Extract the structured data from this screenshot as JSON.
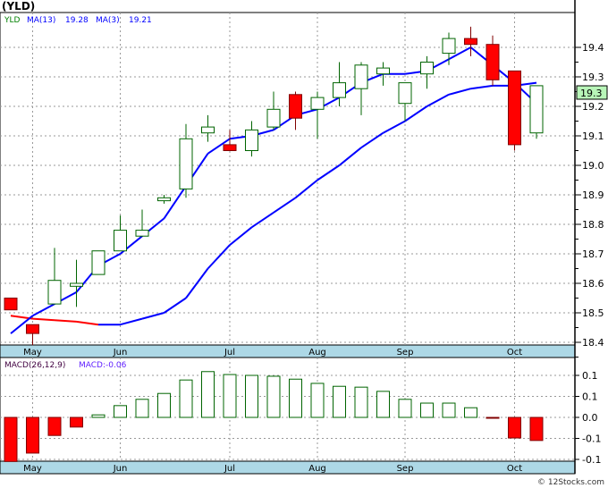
{
  "title": "(YLD)",
  "legend": {
    "symbol": "YLD",
    "ma13_label": "MA(13)",
    "ma13_value": "19.28",
    "ma3_label": "MA(3)",
    "ma3_value": "19.21"
  },
  "macd_legend": {
    "label": "MACD(26,12,9)",
    "value": "MACD:-0.06"
  },
  "footer": "© 12Stocks.com",
  "current_price": "19.3",
  "colors": {
    "up": "#006400",
    "down": "#ff0000",
    "ma": "#0000ff",
    "axis_band": "#add8e6",
    "price_box": "#b8f5b8"
  },
  "chart_data": [
    {
      "type": "candlestick",
      "title": "(YLD)",
      "ylim": [
        18.38,
        19.52
      ],
      "yticks": [
        "19.4",
        "19.3",
        "19.2",
        "19.1",
        "19.0",
        "18.9",
        "18.8",
        "18.7",
        "18.6",
        "18.5",
        "18.4"
      ],
      "month_labels": [
        {
          "label": "May",
          "index": 1
        },
        {
          "label": "Jun",
          "index": 5
        },
        {
          "label": "Jul",
          "index": 10
        },
        {
          "label": "Aug",
          "index": 14
        },
        {
          "label": "Sep",
          "index": 18
        },
        {
          "label": "Oct",
          "index": 23
        }
      ],
      "ohlc": [
        [
          18.55,
          18.55,
          18.51,
          18.51
        ],
        [
          18.46,
          18.46,
          18.39,
          18.43
        ],
        [
          18.53,
          18.72,
          18.53,
          18.61
        ],
        [
          18.59,
          18.68,
          18.52,
          18.6
        ],
        [
          18.63,
          18.71,
          18.63,
          18.71
        ],
        [
          18.71,
          18.83,
          18.71,
          18.78
        ],
        [
          18.76,
          18.85,
          18.76,
          18.78
        ],
        [
          18.88,
          18.9,
          18.87,
          18.89
        ],
        [
          18.92,
          19.14,
          18.89,
          19.09
        ],
        [
          19.11,
          19.17,
          19.08,
          19.13
        ],
        [
          19.07,
          19.12,
          19.05,
          19.05
        ],
        [
          19.05,
          19.15,
          19.03,
          19.12
        ],
        [
          19.13,
          19.25,
          19.12,
          19.19
        ],
        [
          19.24,
          19.25,
          19.12,
          19.16
        ],
        [
          19.19,
          19.25,
          19.09,
          19.23
        ],
        [
          19.23,
          19.35,
          19.2,
          19.28
        ],
        [
          19.26,
          19.35,
          19.17,
          19.34
        ],
        [
          19.31,
          19.35,
          19.27,
          19.33
        ],
        [
          19.21,
          19.28,
          19.15,
          19.28
        ],
        [
          19.31,
          19.37,
          19.26,
          19.35
        ],
        [
          19.38,
          19.45,
          19.34,
          19.43
        ],
        [
          19.43,
          19.47,
          19.37,
          19.41
        ],
        [
          19.41,
          19.44,
          19.27,
          19.29
        ],
        [
          19.32,
          19.32,
          19.05,
          19.07
        ],
        [
          19.11,
          19.27,
          19.09,
          19.27
        ]
      ],
      "ma13": [
        18.49,
        18.48,
        18.475,
        18.47,
        18.46,
        18.46,
        18.48,
        18.5,
        18.55,
        18.65,
        18.73,
        18.79,
        18.84,
        18.89,
        18.95,
        19.0,
        19.06,
        19.11,
        19.15,
        19.2,
        19.24,
        19.26,
        19.27,
        19.27,
        19.28
      ],
      "ma3": [
        18.43,
        18.49,
        18.53,
        18.57,
        18.66,
        18.7,
        18.76,
        18.82,
        18.93,
        19.04,
        19.09,
        19.1,
        19.12,
        19.17,
        19.19,
        19.23,
        19.28,
        19.31,
        19.31,
        19.32,
        19.36,
        19.4,
        19.34,
        19.28,
        19.21
      ]
    },
    {
      "type": "bar",
      "title": "MACD(26,12,9)",
      "ylim": [
        -0.11,
        0.12
      ],
      "yticks": [
        "0.1",
        "0.1",
        "0.0",
        "-0.1",
        "-0.1"
      ],
      "ytick_values": [
        0.1,
        0.05,
        0,
        -0.05,
        -0.1
      ],
      "values": [
        -0.105,
        -0.085,
        -0.043,
        -0.023,
        0.006,
        0.028,
        0.043,
        0.057,
        0.089,
        0.109,
        0.102,
        0.1,
        0.098,
        0.091,
        0.081,
        0.074,
        0.072,
        0.062,
        0.043,
        0.034,
        0.034,
        0.023,
        -0.002,
        -0.049,
        -0.055
      ]
    }
  ]
}
